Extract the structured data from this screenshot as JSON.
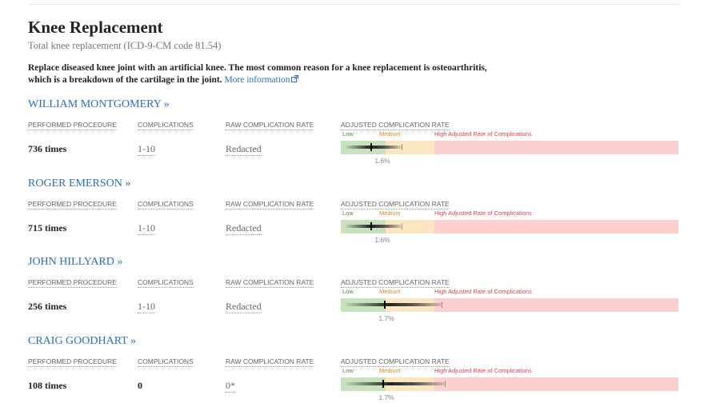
{
  "header": {
    "title": "Knee Replacement",
    "subtitle": "Total knee replacement (ICD-9-CM code 81.54)",
    "description": [
      "Replace diseased knee joint with an artificial knee. The most common reason for a knee replacement is osteoarthritis,",
      "which is a breakdown of the cartilage in the joint."
    ],
    "link": "More information"
  },
  "columns": [
    "PERFORMED PROCEDURE",
    "COMPLICATIONS",
    "RAW COMPLICATION RATE",
    "ADJUSTED COMPLICATION RATE"
  ],
  "rate_legend": [
    "Low",
    "Medium",
    "High Adjusted Rate of Complications"
  ],
  "surgeons": [
    {
      "name": "WILLIAM MONTGOMERY »",
      "performed": "736 times",
      "complications": "1-10",
      "raw_rate": "Redacted",
      "adjusted_rate": "1.6%"
    },
    {
      "name": "ROGER EMERSON »",
      "performed": "715 times",
      "complications": "1-10",
      "raw_rate": "Redacted",
      "adjusted_rate": "1.6%"
    },
    {
      "name": "JOHN HILLYARD »",
      "performed": "256 times",
      "complications": "1-10",
      "raw_rate": "Redacted",
      "adjusted_rate": "1.7%"
    },
    {
      "name": "CRAIG GOODHART »",
      "performed": "108 times",
      "complications": "0",
      "raw_rate": "0*",
      "adjusted_rate": "1.7%"
    }
  ]
}
